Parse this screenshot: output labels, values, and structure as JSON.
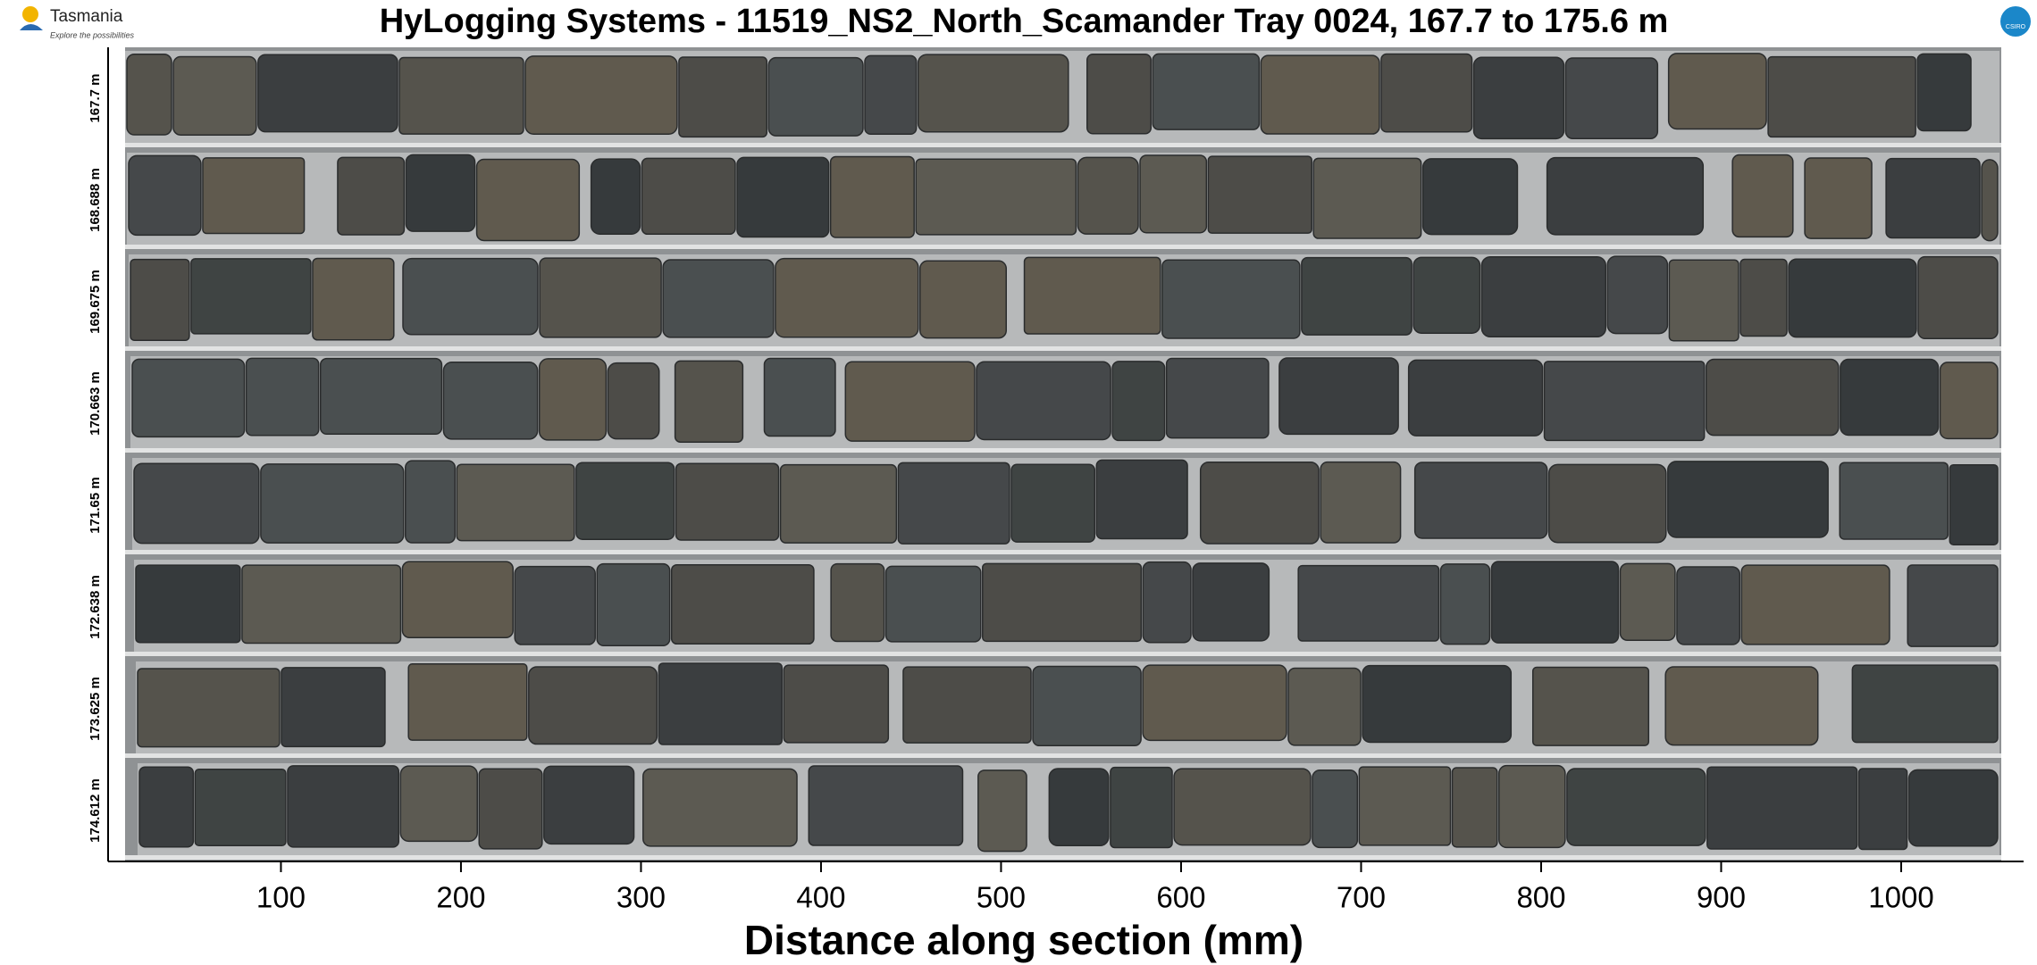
{
  "logo": {
    "name": "Tasmania",
    "tagline": "Explore the possibilities"
  },
  "badge": "CSIRO",
  "chart_data": {
    "type": "core-image",
    "title": "HyLogging Systems  -  11519_NS2_North_Scamander  Tray 0024,  167.7 to 175.6 m",
    "rows": [
      "167.7 m",
      "168.688 m",
      "169.675 m",
      "170.663 m",
      "171.65 m",
      "172.638 m",
      "173.625 m",
      "174.612 m"
    ],
    "xlabel": "Distance along section (mm)",
    "xlim": [
      4,
      1068
    ],
    "xticks": [
      100,
      200,
      300,
      400,
      500,
      600,
      700,
      800,
      900,
      1000
    ]
  }
}
